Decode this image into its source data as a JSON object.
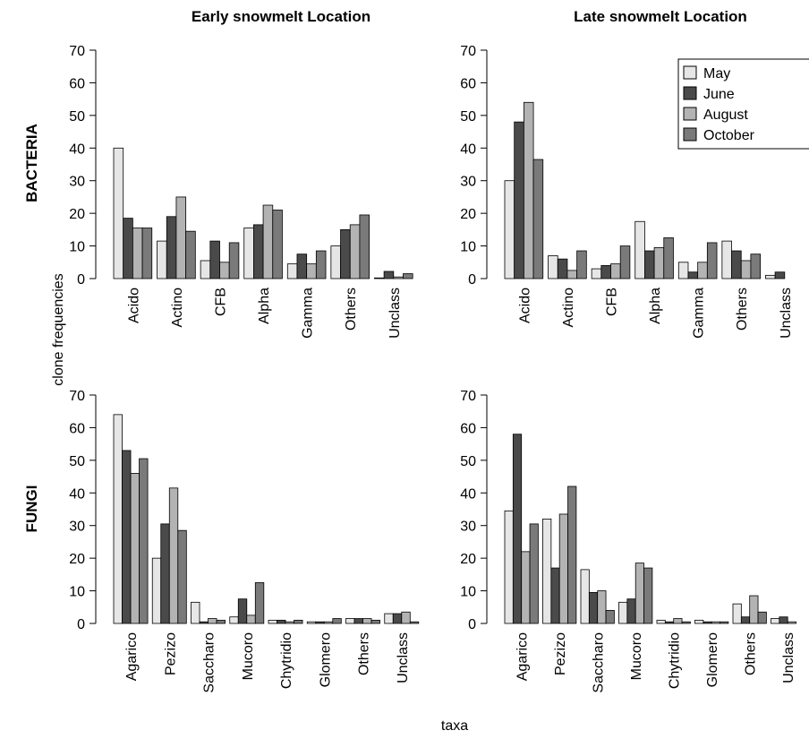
{
  "figure": {
    "column_titles": [
      "Early snowmelt Location",
      "Late snowmelt Location"
    ],
    "row_titles": [
      "BACTERIA",
      "FUNGI"
    ],
    "ylabel": "clone frequencies",
    "xlabel": "taxa"
  },
  "legend": {
    "placement": "top-right",
    "entries": [
      {
        "name": "May",
        "color": "#e6e6e6"
      },
      {
        "name": "June",
        "color": "#4a4a4a"
      },
      {
        "name": "August",
        "color": "#b3b3b3"
      },
      {
        "name": "October",
        "color": "#7a7a7a"
      }
    ]
  },
  "chart_data": [
    {
      "type": "bar",
      "title": "Early snowmelt Location",
      "row": "BACTERIA",
      "categories": [
        "Acido",
        "Actino",
        "CFB",
        "Alpha",
        "Gamma",
        "Others",
        "Unclass"
      ],
      "yticks": [
        "0",
        "10",
        "20",
        "30",
        "40",
        "50",
        "60",
        "70"
      ],
      "ylim": [
        0,
        70
      ],
      "series": [
        {
          "name": "May",
          "values": [
            40,
            11.5,
            5.5,
            15.5,
            4.5,
            10,
            0.2
          ]
        },
        {
          "name": "June",
          "values": [
            18.5,
            19,
            11.5,
            16.5,
            7.5,
            15,
            2.2
          ]
        },
        {
          "name": "August",
          "values": [
            15.5,
            25,
            5,
            22.5,
            4.5,
            16.5,
            0.5
          ]
        },
        {
          "name": "October",
          "values": [
            15.5,
            14.5,
            11,
            21,
            8.5,
            19.5,
            1.5
          ]
        }
      ]
    },
    {
      "type": "bar",
      "title": "Late snowmelt Location",
      "row": "BACTERIA",
      "categories": [
        "Acido",
        "Actino",
        "CFB",
        "Alpha",
        "Gamma",
        "Others",
        "Unclass"
      ],
      "yticks": [
        "0",
        "10",
        "20",
        "30",
        "40",
        "50",
        "60",
        "70"
      ],
      "ylim": [
        0,
        70
      ],
      "series": [
        {
          "name": "May",
          "values": [
            30,
            7,
            3,
            17.5,
            5,
            11.5,
            1
          ]
        },
        {
          "name": "June",
          "values": [
            48,
            6,
            4,
            8.5,
            2,
            8.5,
            2
          ]
        },
        {
          "name": "August",
          "values": [
            54,
            2.5,
            4.5,
            9.5,
            5,
            5.5,
            0
          ]
        },
        {
          "name": "October",
          "values": [
            36.5,
            8.5,
            10,
            12.5,
            11,
            7.5,
            0
          ]
        }
      ]
    },
    {
      "type": "bar",
      "title": "Early snowmelt Location",
      "row": "FUNGI",
      "categories": [
        "Agarico",
        "Pezizo",
        "Saccharo",
        "Mucoro",
        "Chytridio",
        "Glomero",
        "Others",
        "Unclass"
      ],
      "yticks": [
        "0",
        "10",
        "20",
        "30",
        "40",
        "50",
        "60",
        "70"
      ],
      "ylim": [
        0,
        70
      ],
      "series": [
        {
          "name": "May",
          "values": [
            64,
            20,
            6.5,
            2,
            1,
            0.5,
            1.5,
            3
          ]
        },
        {
          "name": "June",
          "values": [
            53,
            30.5,
            0.5,
            7.5,
            1,
            0.5,
            1.5,
            3
          ]
        },
        {
          "name": "August",
          "values": [
            46,
            41.5,
            1.5,
            2.5,
            0.5,
            0.5,
            1.5,
            3.5
          ]
        },
        {
          "name": "October",
          "values": [
            50.5,
            28.5,
            1,
            12.5,
            1,
            1.5,
            1,
            0.5
          ]
        }
      ]
    },
    {
      "type": "bar",
      "title": "Late snowmelt Location",
      "row": "FUNGI",
      "categories": [
        "Agarico",
        "Pezizo",
        "Saccharo",
        "Mucoro",
        "Chytridio",
        "Glomero",
        "Others",
        "Unclass"
      ],
      "yticks": [
        "0",
        "10",
        "20",
        "30",
        "40",
        "50",
        "60",
        "70"
      ],
      "ylim": [
        0,
        70
      ],
      "series": [
        {
          "name": "May",
          "values": [
            34.5,
            32,
            16.5,
            6.5,
            1,
            1,
            6,
            1.5
          ]
        },
        {
          "name": "June",
          "values": [
            58,
            17,
            9.5,
            7.5,
            0.5,
            0.5,
            2,
            2
          ]
        },
        {
          "name": "August",
          "values": [
            22,
            33.5,
            10,
            18.5,
            1.5,
            0.5,
            8.5,
            0.5
          ]
        },
        {
          "name": "October",
          "values": [
            30.5,
            42,
            4,
            17,
            0.5,
            0.5,
            3.5,
            0
          ]
        }
      ]
    }
  ]
}
